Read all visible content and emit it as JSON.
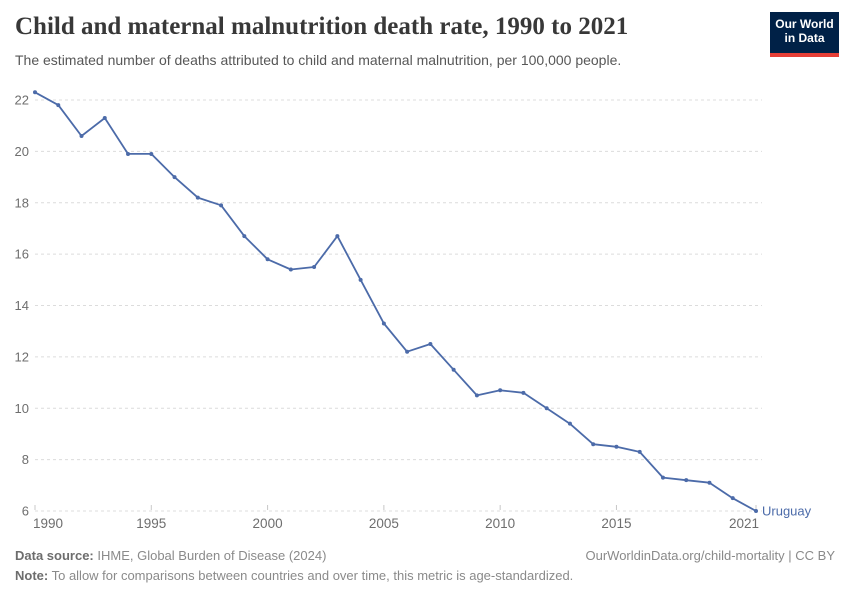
{
  "header": {
    "title": "Child and maternal malnutrition death rate, 1990 to 2021",
    "subtitle": "The estimated number of deaths attributed to child and maternal malnutrition, per 100,000 people.",
    "logo": {
      "line1": "Our World",
      "line2": "in Data",
      "bg_color": "#002147",
      "accent_color": "#e63e36"
    }
  },
  "chart_data": {
    "type": "line",
    "title": "Child and maternal malnutrition death rate, 1990 to 2021",
    "xlabel": "",
    "ylabel": "",
    "xlim": [
      1990,
      2021
    ],
    "ylim": [
      6,
      22
    ],
    "x_ticks": [
      1990,
      1995,
      2000,
      2005,
      2010,
      2015,
      2021
    ],
    "y_ticks": [
      6,
      8,
      10,
      12,
      14,
      16,
      18,
      20,
      22
    ],
    "grid": "horizontal-dashed",
    "entity_label": "Uruguay",
    "series": [
      {
        "name": "Uruguay",
        "color": "#4c6ba9",
        "x": [
          1990,
          1991,
          1992,
          1993,
          1994,
          1995,
          1996,
          1997,
          1998,
          1999,
          2000,
          2001,
          2002,
          2003,
          2004,
          2005,
          2006,
          2007,
          2008,
          2009,
          2010,
          2011,
          2012,
          2013,
          2014,
          2015,
          2016,
          2017,
          2018,
          2019,
          2020,
          2021
        ],
        "values": [
          22.3,
          21.8,
          20.6,
          21.3,
          19.9,
          19.9,
          19.0,
          18.2,
          17.9,
          16.7,
          15.8,
          15.4,
          15.5,
          16.7,
          15.0,
          13.3,
          12.2,
          12.5,
          11.5,
          10.5,
          10.7,
          10.6,
          10.0,
          9.4,
          8.6,
          8.5,
          8.3,
          7.3,
          7.2,
          7.1,
          6.5,
          6.0
        ]
      }
    ],
    "colors": {
      "gridline": "#dcdcdc",
      "axis_label": "#6e6e6e",
      "tick_mark": "#c8c8c8"
    }
  },
  "footer": {
    "datasource_label": "Data source:",
    "datasource_value": " IHME, Global Burden of Disease (2024)",
    "link": "OurWorldinData.org/child-mortality | CC BY",
    "note_label": "Note:",
    "note_value": " To allow for comparisons between countries and over time, this metric is age-standardized."
  }
}
